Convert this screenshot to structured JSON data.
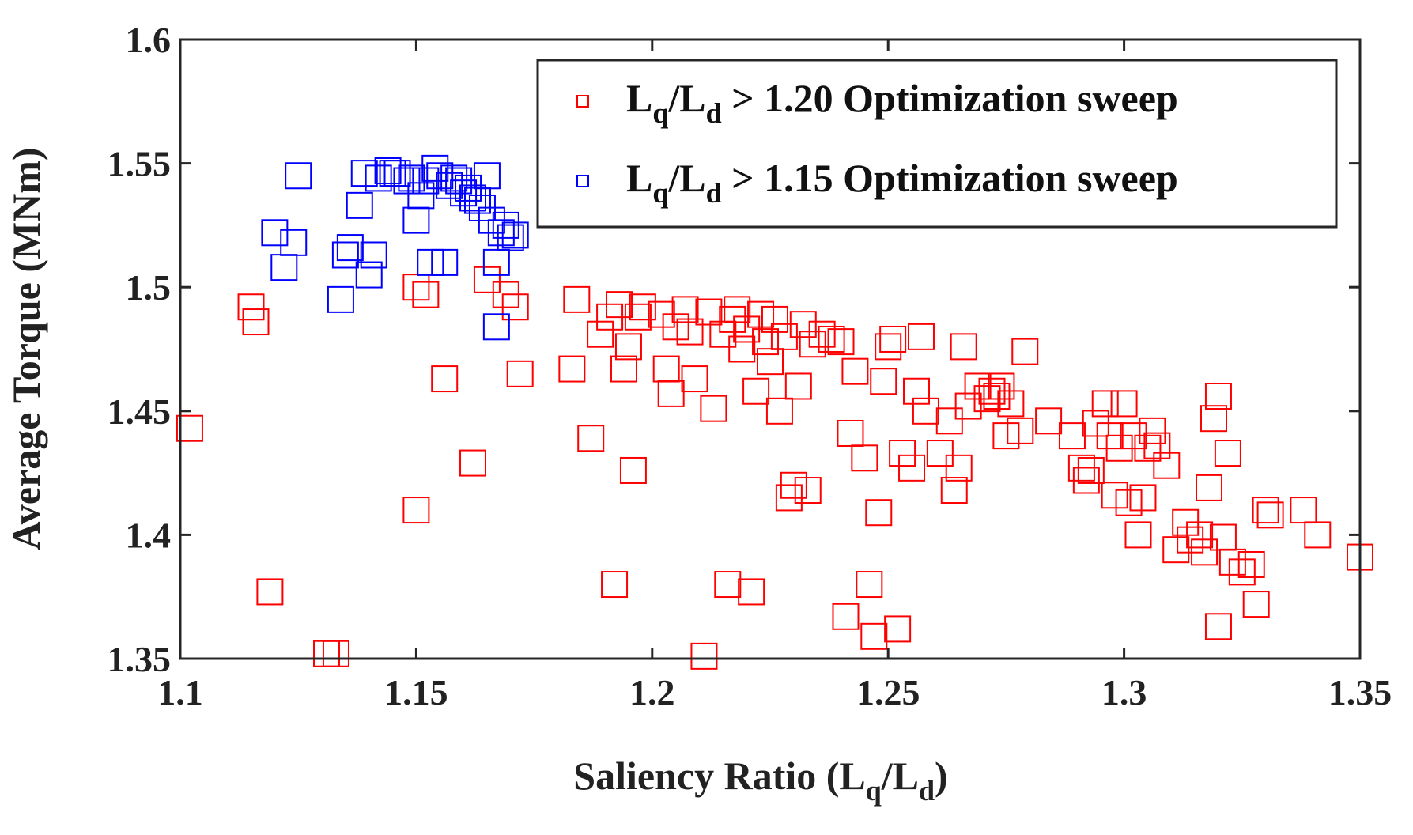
{
  "chart_data": {
    "type": "scatter",
    "marker": "square",
    "xlabel": {
      "main": "Saliency Ratio (L",
      "sub1": "q",
      "mid": "/L",
      "sub2": "d",
      "end": ")"
    },
    "ylabel": "Average Torque (MNm)",
    "xlim": [
      1.1,
      1.35
    ],
    "ylim": [
      1.35,
      1.6
    ],
    "x_ticks": [
      1.1,
      1.15,
      1.2,
      1.25,
      1.3,
      1.35
    ],
    "x_tick_labels": [
      "1.1",
      "1.15",
      "1.2",
      "1.25",
      "1.3",
      "1.35"
    ],
    "y_ticks": [
      1.35,
      1.4,
      1.45,
      1.5,
      1.55,
      1.6
    ],
    "y_tick_labels": [
      "1.35",
      "1.4",
      "1.45",
      "1.5",
      "1.55",
      "1.6"
    ],
    "grid": false,
    "box": true,
    "legend_position": "top-right",
    "series": [
      {
        "name": "Lq/Ld > 1.20 Optimization sweep",
        "legend": {
          "a": "L",
          "sub1": "q",
          "b": "/L",
          "sub2": "d",
          "c": " > 1.20 Optimization sweep"
        },
        "color": "#ff0000",
        "points": [
          [
            1.102,
            1.443
          ],
          [
            1.115,
            1.492
          ],
          [
            1.116,
            1.486
          ],
          [
            1.119,
            1.377
          ],
          [
            1.131,
            1.352
          ],
          [
            1.133,
            1.352
          ],
          [
            1.15,
            1.5
          ],
          [
            1.15,
            1.41
          ],
          [
            1.152,
            1.497
          ],
          [
            1.156,
            1.463
          ],
          [
            1.162,
            1.429
          ],
          [
            1.165,
            1.503
          ],
          [
            1.169,
            1.497
          ],
          [
            1.171,
            1.492
          ],
          [
            1.172,
            1.465
          ],
          [
            1.183,
            1.467
          ],
          [
            1.184,
            1.495
          ],
          [
            1.187,
            1.439
          ],
          [
            1.189,
            1.481
          ],
          [
            1.191,
            1.488
          ],
          [
            1.192,
            1.38
          ],
          [
            1.193,
            1.493
          ],
          [
            1.194,
            1.467
          ],
          [
            1.195,
            1.476
          ],
          [
            1.196,
            1.426
          ],
          [
            1.197,
            1.488
          ],
          [
            1.198,
            1.492
          ],
          [
            1.202,
            1.489
          ],
          [
            1.203,
            1.467
          ],
          [
            1.204,
            1.457
          ],
          [
            1.205,
            1.484
          ],
          [
            1.207,
            1.491
          ],
          [
            1.208,
            1.482
          ],
          [
            1.209,
            1.463
          ],
          [
            1.211,
            1.351
          ],
          [
            1.212,
            1.49
          ],
          [
            1.213,
            1.451
          ],
          [
            1.215,
            1.481
          ],
          [
            1.216,
            1.38
          ],
          [
            1.217,
            1.487
          ],
          [
            1.218,
            1.491
          ],
          [
            1.219,
            1.475
          ],
          [
            1.22,
            1.483
          ],
          [
            1.221,
            1.377
          ],
          [
            1.222,
            1.458
          ],
          [
            1.223,
            1.489
          ],
          [
            1.224,
            1.478
          ],
          [
            1.225,
            1.47
          ],
          [
            1.226,
            1.487
          ],
          [
            1.227,
            1.45
          ],
          [
            1.228,
            1.48
          ],
          [
            1.229,
            1.415
          ],
          [
            1.23,
            1.42
          ],
          [
            1.231,
            1.46
          ],
          [
            1.232,
            1.485
          ],
          [
            1.233,
            1.418
          ],
          [
            1.234,
            1.477
          ],
          [
            1.236,
            1.481
          ],
          [
            1.238,
            1.479
          ],
          [
            1.24,
            1.478
          ],
          [
            1.241,
            1.367
          ],
          [
            1.242,
            1.441
          ],
          [
            1.243,
            1.466
          ],
          [
            1.245,
            1.431
          ],
          [
            1.246,
            1.38
          ],
          [
            1.247,
            1.359
          ],
          [
            1.248,
            1.409
          ],
          [
            1.249,
            1.462
          ],
          [
            1.25,
            1.476
          ],
          [
            1.251,
            1.479
          ],
          [
            1.252,
            1.362
          ],
          [
            1.253,
            1.433
          ],
          [
            1.255,
            1.427
          ],
          [
            1.256,
            1.458
          ],
          [
            1.257,
            1.48
          ],
          [
            1.258,
            1.45
          ],
          [
            1.261,
            1.433
          ],
          [
            1.263,
            1.446
          ],
          [
            1.264,
            1.418
          ],
          [
            1.265,
            1.427
          ],
          [
            1.266,
            1.476
          ],
          [
            1.267,
            1.452
          ],
          [
            1.269,
            1.46
          ],
          [
            1.271,
            1.455
          ],
          [
            1.272,
            1.458
          ],
          [
            1.273,
            1.456
          ],
          [
            1.274,
            1.46
          ],
          [
            1.275,
            1.44
          ],
          [
            1.276,
            1.453
          ],
          [
            1.278,
            1.442
          ],
          [
            1.279,
            1.474
          ],
          [
            1.284,
            1.446
          ],
          [
            1.289,
            1.44
          ],
          [
            1.291,
            1.427
          ],
          [
            1.292,
            1.422
          ],
          [
            1.293,
            1.426
          ],
          [
            1.294,
            1.445
          ],
          [
            1.296,
            1.453
          ],
          [
            1.297,
            1.44
          ],
          [
            1.298,
            1.416
          ],
          [
            1.299,
            1.435
          ],
          [
            1.3,
            1.453
          ],
          [
            1.301,
            1.413
          ],
          [
            1.302,
            1.44
          ],
          [
            1.303,
            1.4
          ],
          [
            1.304,
            1.415
          ],
          [
            1.305,
            1.435
          ],
          [
            1.306,
            1.442
          ],
          [
            1.307,
            1.436
          ],
          [
            1.309,
            1.428
          ],
          [
            1.311,
            1.394
          ],
          [
            1.313,
            1.405
          ],
          [
            1.314,
            1.398
          ],
          [
            1.316,
            1.4
          ],
          [
            1.317,
            1.393
          ],
          [
            1.318,
            1.419
          ],
          [
            1.319,
            1.447
          ],
          [
            1.32,
            1.363
          ],
          [
            1.32,
            1.456
          ],
          [
            1.321,
            1.399
          ],
          [
            1.322,
            1.433
          ],
          [
            1.323,
            1.389
          ],
          [
            1.325,
            1.385
          ],
          [
            1.327,
            1.388
          ],
          [
            1.328,
            1.372
          ],
          [
            1.33,
            1.41
          ],
          [
            1.331,
            1.408
          ],
          [
            1.338,
            1.41
          ],
          [
            1.341,
            1.4
          ],
          [
            1.35,
            1.391
          ]
        ]
      },
      {
        "name": "Lq/Ld > 1.15 Optimization sweep",
        "legend": {
          "a": "L",
          "sub1": "q",
          "b": "/L",
          "sub2": "d",
          "c": " > 1.15 Optimization sweep"
        },
        "color": "#0000ff",
        "points": [
          [
            1.12,
            1.522
          ],
          [
            1.122,
            1.508
          ],
          [
            1.124,
            1.518
          ],
          [
            1.125,
            1.545
          ],
          [
            1.134,
            1.495
          ],
          [
            1.135,
            1.513
          ],
          [
            1.136,
            1.516
          ],
          [
            1.138,
            1.533
          ],
          [
            1.139,
            1.546
          ],
          [
            1.14,
            1.505
          ],
          [
            1.141,
            1.513
          ],
          [
            1.142,
            1.544
          ],
          [
            1.144,
            1.547
          ],
          [
            1.145,
            1.546
          ],
          [
            1.146,
            1.546
          ],
          [
            1.148,
            1.543
          ],
          [
            1.149,
            1.544
          ],
          [
            1.15,
            1.527
          ],
          [
            1.151,
            1.537
          ],
          [
            1.152,
            1.543
          ],
          [
            1.153,
            1.51
          ],
          [
            1.154,
            1.548
          ],
          [
            1.155,
            1.545
          ],
          [
            1.156,
            1.51
          ],
          [
            1.157,
            1.541
          ],
          [
            1.158,
            1.544
          ],
          [
            1.159,
            1.543
          ],
          [
            1.16,
            1.538
          ],
          [
            1.161,
            1.54
          ],
          [
            1.162,
            1.536
          ],
          [
            1.163,
            1.535
          ],
          [
            1.164,
            1.532
          ],
          [
            1.165,
            1.545
          ],
          [
            1.166,
            1.527
          ],
          [
            1.167,
            1.51
          ],
          [
            1.167,
            1.484
          ],
          [
            1.168,
            1.522
          ],
          [
            1.169,
            1.525
          ],
          [
            1.17,
            1.52
          ],
          [
            1.171,
            1.521
          ]
        ]
      }
    ]
  }
}
